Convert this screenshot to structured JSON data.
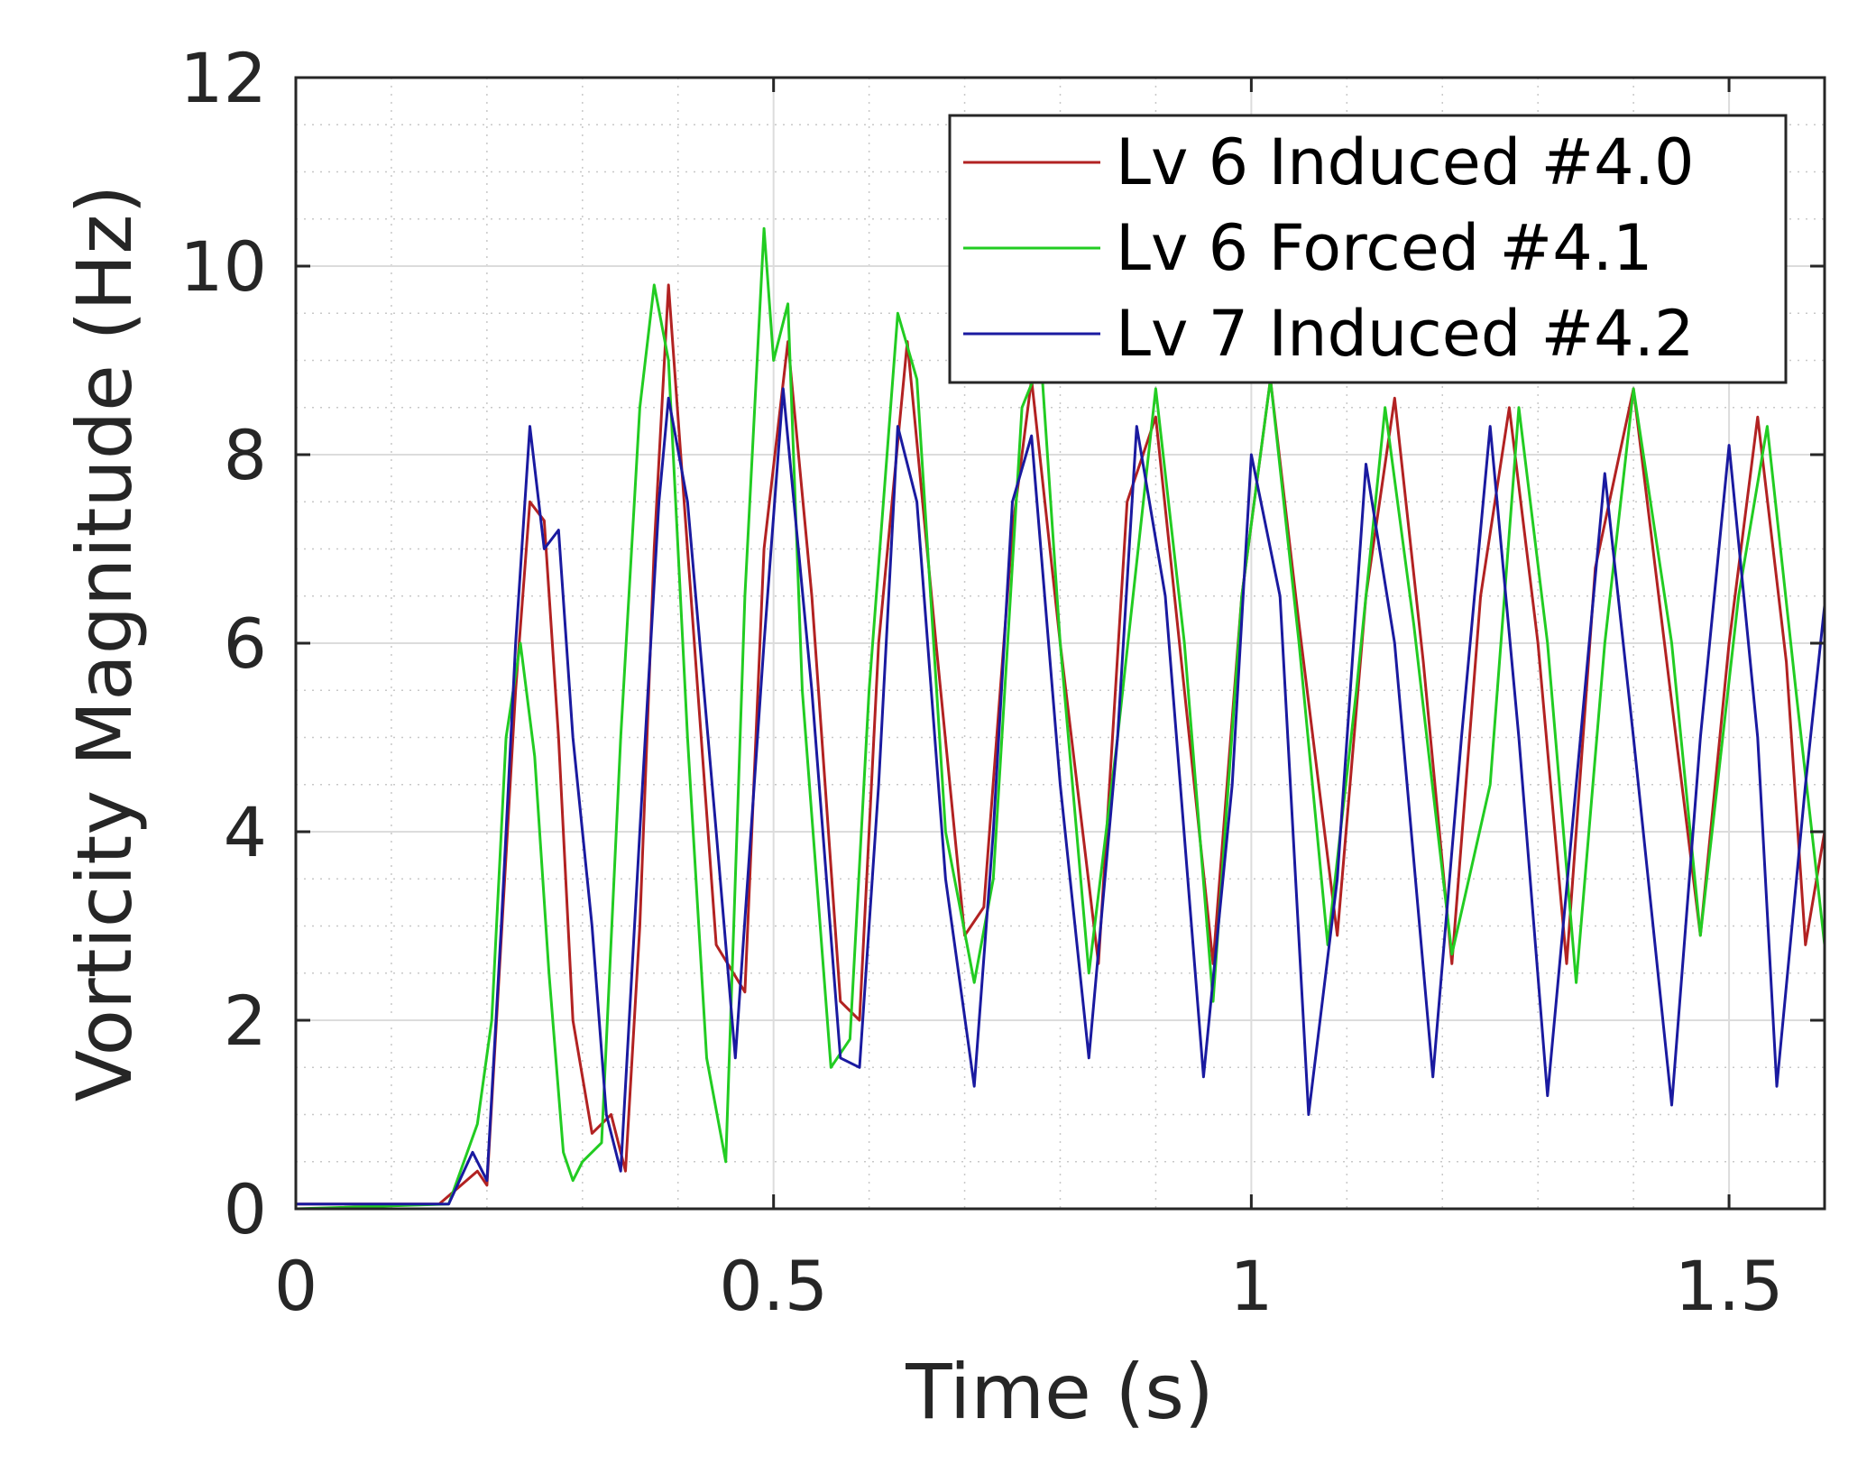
{
  "chart_data": {
    "type": "line",
    "title": "",
    "xlabel": "Time (s)",
    "ylabel": "Vorticity Magnitude (Hz)",
    "xlim": [
      0,
      1.6
    ],
    "ylim": [
      0,
      12
    ],
    "xticks": [
      0,
      0.5,
      1,
      1.5
    ],
    "xtick_labels": [
      "0",
      "0.5",
      "1",
      "1.5"
    ],
    "yticks": [
      0,
      2,
      4,
      6,
      8,
      10,
      12
    ],
    "ytick_labels": [
      "0",
      "2",
      "4",
      "6",
      "8",
      "10",
      "12"
    ],
    "grid": true,
    "minor_grid": true,
    "legend_position": "top-right",
    "series": [
      {
        "name": "Lv 6 Induced #4.0",
        "color": "#b22222",
        "x": [
          0,
          0.15,
          0.19,
          0.2,
          0.21,
          0.23,
          0.245,
          0.26,
          0.275,
          0.29,
          0.31,
          0.33,
          0.345,
          0.36,
          0.375,
          0.39,
          0.41,
          0.44,
          0.47,
          0.49,
          0.515,
          0.54,
          0.57,
          0.59,
          0.61,
          0.64,
          0.67,
          0.7,
          0.72,
          0.75,
          0.77,
          0.8,
          0.84,
          0.87,
          0.9,
          0.93,
          0.96,
          0.99,
          1.02,
          1.05,
          1.09,
          1.12,
          1.15,
          1.18,
          1.21,
          1.24,
          1.27,
          1.3,
          1.33,
          1.36,
          1.4,
          1.43,
          1.47,
          1.5,
          1.53,
          1.56,
          1.58,
          1.6
        ],
        "y": [
          0.05,
          0.05,
          0.4,
          0.25,
          2.0,
          5.5,
          7.5,
          7.3,
          5.0,
          2.0,
          0.8,
          1.0,
          0.4,
          3.0,
          7.0,
          9.8,
          7.0,
          2.8,
          2.3,
          7.0,
          9.2,
          6.5,
          2.2,
          2.0,
          6.0,
          9.2,
          6.0,
          2.9,
          3.2,
          7.2,
          8.8,
          6.0,
          2.6,
          7.5,
          8.4,
          5.5,
          2.6,
          6.5,
          8.8,
          6.2,
          2.9,
          6.5,
          8.6,
          5.8,
          2.6,
          6.5,
          8.5,
          6.0,
          2.6,
          6.8,
          8.7,
          6.2,
          2.9,
          6.0,
          8.4,
          5.8,
          2.8,
          4.0
        ]
      },
      {
        "name": "Lv 6 Forced #4.1",
        "color": "#22cc22",
        "x": [
          0,
          0.16,
          0.19,
          0.205,
          0.22,
          0.235,
          0.25,
          0.265,
          0.28,
          0.29,
          0.3,
          0.32,
          0.34,
          0.36,
          0.375,
          0.39,
          0.41,
          0.43,
          0.45,
          0.47,
          0.49,
          0.5,
          0.515,
          0.53,
          0.56,
          0.58,
          0.6,
          0.63,
          0.65,
          0.68,
          0.71,
          0.73,
          0.76,
          0.78,
          0.8,
          0.83,
          0.86,
          0.9,
          0.93,
          0.96,
          0.99,
          1.02,
          1.05,
          1.08,
          1.11,
          1.14,
          1.17,
          1.21,
          1.25,
          1.28,
          1.31,
          1.34,
          1.37,
          1.4,
          1.44,
          1.47,
          1.51,
          1.54,
          1.57,
          1.6
        ],
        "y": [
          0.0,
          0.05,
          0.9,
          2.0,
          5.0,
          6.0,
          4.8,
          2.5,
          0.6,
          0.3,
          0.5,
          0.7,
          5.0,
          8.5,
          9.8,
          9.0,
          5.0,
          1.6,
          0.5,
          6.5,
          10.4,
          9.0,
          9.6,
          5.5,
          1.5,
          1.8,
          5.5,
          9.5,
          8.8,
          4.0,
          2.4,
          3.5,
          8.5,
          9.0,
          6.0,
          2.5,
          5.0,
          8.7,
          6.0,
          2.2,
          6.5,
          8.8,
          6.0,
          2.8,
          5.5,
          8.5,
          6.2,
          2.7,
          4.5,
          8.5,
          6.0,
          2.4,
          6.0,
          8.7,
          6.0,
          2.9,
          6.5,
          8.3,
          5.5,
          2.8
        ]
      },
      {
        "name": "Lv 7 Induced #4.2",
        "color": "#1a1aa0",
        "x": [
          0,
          0.16,
          0.185,
          0.2,
          0.215,
          0.23,
          0.245,
          0.26,
          0.275,
          0.29,
          0.31,
          0.325,
          0.34,
          0.36,
          0.38,
          0.39,
          0.41,
          0.44,
          0.46,
          0.49,
          0.51,
          0.54,
          0.57,
          0.59,
          0.61,
          0.63,
          0.65,
          0.68,
          0.71,
          0.73,
          0.75,
          0.77,
          0.8,
          0.83,
          0.86,
          0.88,
          0.91,
          0.95,
          0.98,
          1.0,
          1.03,
          1.06,
          1.09,
          1.12,
          1.15,
          1.19,
          1.22,
          1.25,
          1.28,
          1.31,
          1.34,
          1.37,
          1.4,
          1.44,
          1.47,
          1.5,
          1.53,
          1.55,
          1.58,
          1.6
        ],
        "y": [
          0.05,
          0.05,
          0.6,
          0.3,
          3.0,
          6.0,
          8.3,
          7.0,
          7.2,
          5.0,
          3.0,
          1.0,
          0.4,
          4.0,
          7.5,
          8.6,
          7.5,
          4.0,
          1.6,
          6.0,
          8.7,
          5.5,
          1.6,
          1.5,
          4.5,
          8.3,
          7.5,
          3.5,
          1.3,
          4.0,
          7.5,
          8.2,
          4.5,
          1.6,
          5.0,
          8.3,
          6.5,
          1.4,
          4.5,
          8.0,
          6.5,
          1.0,
          3.5,
          7.9,
          6.0,
          1.4,
          5.0,
          8.3,
          5.0,
          1.2,
          4.5,
          7.8,
          5.0,
          1.1,
          5.0,
          8.1,
          5.0,
          1.3,
          4.5,
          6.4
        ]
      }
    ]
  }
}
